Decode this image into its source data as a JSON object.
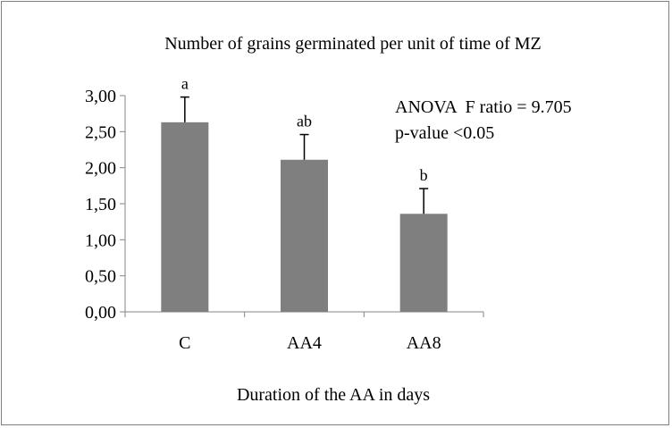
{
  "chart_data": {
    "type": "bar",
    "title": "Number of grains germinated per unit of time of MZ",
    "xlabel": "Duration of the AA in days",
    "ylabel": "",
    "categories": [
      "C",
      "AA4",
      "AA8"
    ],
    "values": [
      2.63,
      2.11,
      1.36
    ],
    "error_upper": [
      2.98,
      2.46,
      1.71
    ],
    "significance_labels": [
      "a",
      "ab",
      "b"
    ],
    "ylim": [
      0,
      3
    ],
    "yticks": [
      0,
      0.5,
      1,
      1.5,
      2,
      2.5,
      3
    ],
    "ytick_labels": [
      "0,00",
      "0,50",
      "1,00",
      "1,50",
      "2,00",
      "2,50",
      "3,00"
    ],
    "annotations": [
      "ANOVA  F ratio = 9.705",
      "p-value <0.05"
    ],
    "bar_color": "#7f7f7f",
    "grid": false,
    "legend": "none"
  }
}
